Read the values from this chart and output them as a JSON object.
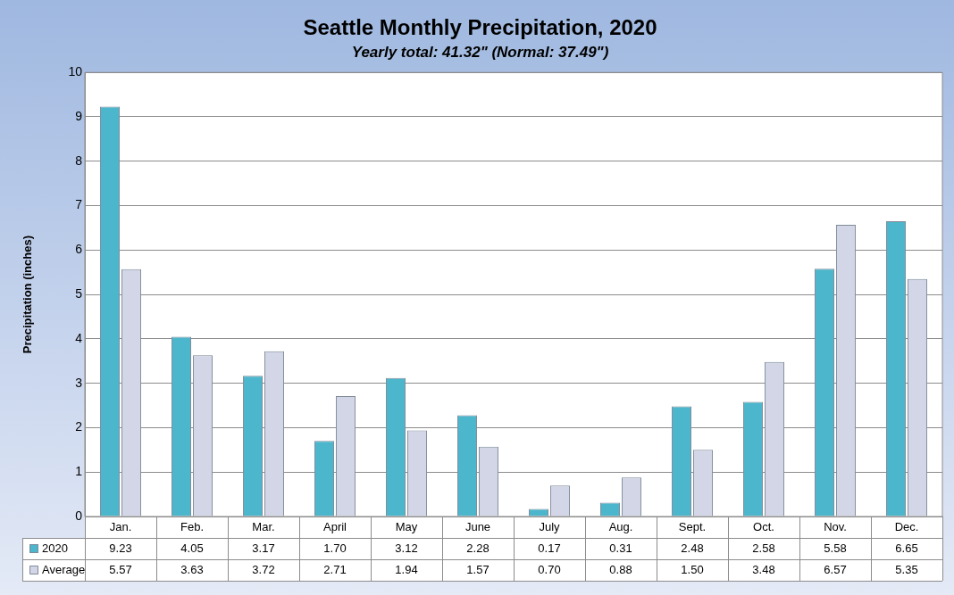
{
  "chart_data": {
    "type": "bar",
    "title": "Seattle Monthly Precipitation, 2020",
    "subtitle": "Yearly total: 41.32\" (Normal: 37.49\")",
    "ylabel": "Precipitation (inches)",
    "categories": [
      "Jan.",
      "Feb.",
      "Mar.",
      "April",
      "May",
      "June",
      "July",
      "Aug.",
      "Sept.",
      "Oct.",
      "Nov.",
      "Dec."
    ],
    "series": [
      {
        "name": "2020",
        "color": "#4bb6cc",
        "values": [
          9.23,
          4.05,
          3.17,
          1.7,
          3.12,
          2.28,
          0.17,
          0.31,
          2.48,
          2.58,
          5.58,
          6.65
        ],
        "value_labels": [
          "9.23",
          "4.05",
          "3.17",
          "1.70",
          "3.12",
          "2.28",
          "0.17",
          "0.31",
          "2.48",
          "2.58",
          "5.58",
          "6.65"
        ]
      },
      {
        "name": "Average",
        "color": "#d3d6e6",
        "values": [
          5.57,
          3.63,
          3.72,
          2.71,
          1.94,
          1.57,
          0.7,
          0.88,
          1.5,
          3.48,
          6.57,
          5.35
        ],
        "value_labels": [
          "5.57",
          "3.63",
          "3.72",
          "2.71",
          "1.94",
          "1.57",
          "0.70",
          "0.88",
          "1.50",
          "3.48",
          "6.57",
          "5.35"
        ]
      }
    ],
    "ylim": [
      0,
      10
    ],
    "yticks": [
      0,
      1,
      2,
      3,
      4,
      5,
      6,
      7,
      8,
      9,
      10
    ],
    "grid": "y",
    "legend": "bottom"
  }
}
